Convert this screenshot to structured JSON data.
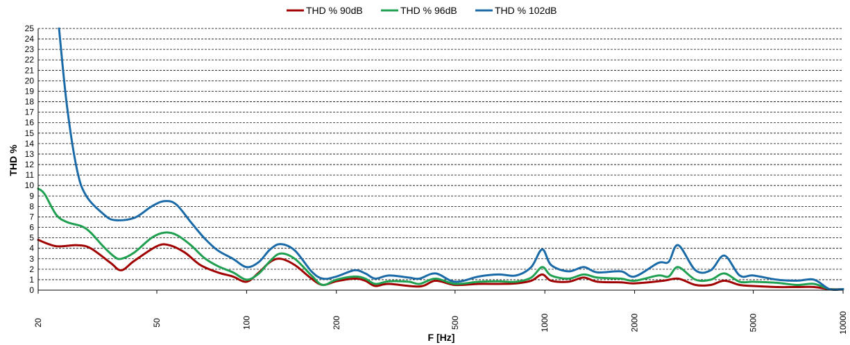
{
  "chart_data": {
    "type": "line",
    "title": "",
    "xlabel": "F [Hz]",
    "ylabel": "THD %",
    "x_scale": "log",
    "xlim": [
      20,
      10000
    ],
    "ylim": [
      0,
      25
    ],
    "grid": true,
    "legend_position": "top",
    "x_ticks": [
      "20",
      "50",
      "100",
      "200",
      "500",
      "1000",
      "2000",
      "5000",
      "10000"
    ],
    "y_ticks": [
      "0",
      "1",
      "2",
      "3",
      "4",
      "5",
      "6",
      "7",
      "8",
      "9",
      "10",
      "11",
      "12",
      "13",
      "14",
      "15",
      "16",
      "17",
      "18",
      "19",
      "20",
      "21",
      "22",
      "23",
      "24",
      "25"
    ],
    "series": [
      {
        "name": "THD % 90dB",
        "color": "#a00000",
        "points": [
          [
            20,
            4.8
          ],
          [
            23,
            4.2
          ],
          [
            27,
            4.3
          ],
          [
            30,
            4.0
          ],
          [
            35,
            2.6
          ],
          [
            38,
            1.9
          ],
          [
            42,
            2.8
          ],
          [
            50,
            4.2
          ],
          [
            55,
            4.3
          ],
          [
            62,
            3.6
          ],
          [
            70,
            2.4
          ],
          [
            80,
            1.7
          ],
          [
            90,
            1.3
          ],
          [
            100,
            0.8
          ],
          [
            110,
            1.7
          ],
          [
            120,
            2.7
          ],
          [
            130,
            3.0
          ],
          [
            145,
            2.4
          ],
          [
            165,
            1.1
          ],
          [
            180,
            0.5
          ],
          [
            200,
            0.85
          ],
          [
            230,
            1.1
          ],
          [
            250,
            0.9
          ],
          [
            270,
            0.4
          ],
          [
            300,
            0.6
          ],
          [
            380,
            0.35
          ],
          [
            430,
            0.9
          ],
          [
            500,
            0.5
          ],
          [
            600,
            0.6
          ],
          [
            700,
            0.6
          ],
          [
            800,
            0.65
          ],
          [
            900,
            0.9
          ],
          [
            980,
            1.5
          ],
          [
            1050,
            0.9
          ],
          [
            1200,
            0.8
          ],
          [
            1350,
            1.2
          ],
          [
            1500,
            0.8
          ],
          [
            1800,
            0.75
          ],
          [
            2000,
            0.65
          ],
          [
            2500,
            0.9
          ],
          [
            2800,
            1.1
          ],
          [
            3200,
            0.5
          ],
          [
            3600,
            0.5
          ],
          [
            4000,
            0.9
          ],
          [
            4500,
            0.5
          ],
          [
            5000,
            0.4
          ],
          [
            6000,
            0.3
          ],
          [
            7000,
            0.3
          ],
          [
            8000,
            0.3
          ],
          [
            9000,
            0.1
          ],
          [
            10000,
            0.1
          ]
        ]
      },
      {
        "name": "THD % 96dB",
        "color": "#1fa050",
        "points": [
          [
            20,
            9.7
          ],
          [
            21,
            9.2
          ],
          [
            23,
            7.2
          ],
          [
            25,
            6.5
          ],
          [
            28,
            6.1
          ],
          [
            30,
            5.5
          ],
          [
            33,
            4.2
          ],
          [
            36,
            3.2
          ],
          [
            38,
            3.0
          ],
          [
            42,
            3.6
          ],
          [
            48,
            5.0
          ],
          [
            53,
            5.5
          ],
          [
            58,
            5.3
          ],
          [
            65,
            4.3
          ],
          [
            72,
            3.1
          ],
          [
            80,
            2.3
          ],
          [
            90,
            1.7
          ],
          [
            100,
            1.0
          ],
          [
            110,
            1.6
          ],
          [
            120,
            2.8
          ],
          [
            130,
            3.5
          ],
          [
            145,
            3.0
          ],
          [
            165,
            1.4
          ],
          [
            180,
            0.5
          ],
          [
            200,
            1.0
          ],
          [
            230,
            1.3
          ],
          [
            250,
            1.1
          ],
          [
            270,
            0.6
          ],
          [
            300,
            0.85
          ],
          [
            350,
            0.8
          ],
          [
            380,
            0.6
          ],
          [
            430,
            1.1
          ],
          [
            500,
            0.6
          ],
          [
            600,
            0.8
          ],
          [
            700,
            0.85
          ],
          [
            800,
            0.8
          ],
          [
            900,
            1.2
          ],
          [
            980,
            2.2
          ],
          [
            1050,
            1.4
          ],
          [
            1200,
            1.1
          ],
          [
            1350,
            1.5
          ],
          [
            1500,
            1.2
          ],
          [
            1800,
            1.1
          ],
          [
            2000,
            0.9
          ],
          [
            2400,
            1.4
          ],
          [
            2600,
            1.3
          ],
          [
            2800,
            2.2
          ],
          [
            3200,
            1.0
          ],
          [
            3600,
            1.0
          ],
          [
            4000,
            1.6
          ],
          [
            4500,
            0.8
          ],
          [
            5000,
            0.8
          ],
          [
            6000,
            0.7
          ],
          [
            7000,
            0.5
          ],
          [
            8000,
            0.6
          ],
          [
            9000,
            0.1
          ],
          [
            10000,
            0.1
          ]
        ]
      },
      {
        "name": "THD % 102dB",
        "color": "#1a6aa8",
        "points": [
          [
            23.5,
            25
          ],
          [
            25,
            17.5
          ],
          [
            27,
            11.5
          ],
          [
            29,
            9.0
          ],
          [
            33,
            7.3
          ],
          [
            36,
            6.7
          ],
          [
            42,
            6.9
          ],
          [
            48,
            8.0
          ],
          [
            53,
            8.5
          ],
          [
            58,
            8.2
          ],
          [
            65,
            6.5
          ],
          [
            72,
            5.0
          ],
          [
            80,
            3.8
          ],
          [
            90,
            3.0
          ],
          [
            100,
            2.2
          ],
          [
            110,
            2.7
          ],
          [
            120,
            3.9
          ],
          [
            130,
            4.4
          ],
          [
            145,
            3.8
          ],
          [
            165,
            1.8
          ],
          [
            180,
            1.1
          ],
          [
            200,
            1.3
          ],
          [
            230,
            1.9
          ],
          [
            250,
            1.6
          ],
          [
            270,
            1.1
          ],
          [
            300,
            1.4
          ],
          [
            350,
            1.2
          ],
          [
            380,
            1.1
          ],
          [
            430,
            1.6
          ],
          [
            500,
            0.8
          ],
          [
            600,
            1.3
          ],
          [
            700,
            1.5
          ],
          [
            800,
            1.4
          ],
          [
            900,
            2.2
          ],
          [
            980,
            3.9
          ],
          [
            1050,
            2.4
          ],
          [
            1200,
            1.8
          ],
          [
            1350,
            2.2
          ],
          [
            1500,
            1.7
          ],
          [
            1800,
            1.8
          ],
          [
            2000,
            1.3
          ],
          [
            2400,
            2.6
          ],
          [
            2600,
            2.7
          ],
          [
            2800,
            4.3
          ],
          [
            3200,
            1.9
          ],
          [
            3600,
            1.9
          ],
          [
            4000,
            3.3
          ],
          [
            4500,
            1.4
          ],
          [
            5000,
            1.4
          ],
          [
            6000,
            1.0
          ],
          [
            7000,
            0.9
          ],
          [
            8000,
            1.0
          ],
          [
            9000,
            0.1
          ],
          [
            10000,
            0.1
          ]
        ]
      }
    ]
  }
}
